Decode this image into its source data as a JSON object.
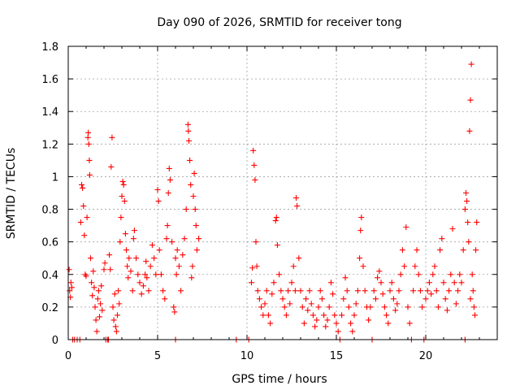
{
  "chart_data": {
    "type": "scatter",
    "title": "Day 090 of 2026, SRMTID for receiver tong",
    "xlabel": "GPS time / hours",
    "ylabel": "SRMTID / TECUs",
    "xlim": [
      0,
      24
    ],
    "ylim": [
      0,
      1.8
    ],
    "xticks": [
      0,
      5,
      10,
      15,
      20
    ],
    "xtick_labels": [
      "0",
      "5",
      "10",
      "15",
      "20"
    ],
    "yticks": [
      0,
      0.2,
      0.4,
      0.6,
      0.8,
      1,
      1.2,
      1.4,
      1.6,
      1.8
    ],
    "ytick_labels": [
      "0",
      "0.2",
      "0.4",
      "0.6",
      "0.8",
      "1",
      "1.2",
      "1.4",
      "1.6",
      "1.8"
    ],
    "grid": true,
    "marker": "+",
    "color": "#ff0000",
    "series": [
      {
        "name": "SRMTID",
        "points": [
          [
            0.05,
            0.43
          ],
          [
            0.08,
            0.3
          ],
          [
            0.12,
            0.26
          ],
          [
            0.15,
            0.35
          ],
          [
            0.2,
            0.32
          ],
          [
            0.25,
            0.0
          ],
          [
            0.35,
            0.0
          ],
          [
            0.5,
            0.0
          ],
          [
            0.65,
            0.0
          ],
          [
            0.7,
            0.72
          ],
          [
            0.75,
            0.95
          ],
          [
            0.8,
            0.93
          ],
          [
            0.85,
            0.82
          ],
          [
            0.9,
            0.64
          ],
          [
            0.95,
            0.4
          ],
          [
            1.0,
            0.39
          ],
          [
            1.05,
            0.75
          ],
          [
            1.1,
            1.24
          ],
          [
            1.12,
            1.27
          ],
          [
            1.15,
            1.2
          ],
          [
            1.18,
            1.1
          ],
          [
            1.2,
            1.01
          ],
          [
            1.25,
            0.5
          ],
          [
            1.3,
            0.35
          ],
          [
            1.35,
            0.27
          ],
          [
            1.4,
            0.42
          ],
          [
            1.45,
            0.32
          ],
          [
            1.5,
            0.2
          ],
          [
            1.55,
            0.12
          ],
          [
            1.6,
            0.05
          ],
          [
            1.65,
            0.25
          ],
          [
            1.7,
            0.3
          ],
          [
            1.75,
            0.14
          ],
          [
            1.8,
            0.22
          ],
          [
            1.85,
            0.33
          ],
          [
            1.9,
            0.18
          ],
          [
            2.0,
            0.43
          ],
          [
            2.05,
            0.47
          ],
          [
            2.1,
            0.0
          ],
          [
            2.2,
            0.0
          ],
          [
            2.25,
            0.0
          ],
          [
            2.3,
            0.52
          ],
          [
            2.35,
            0.43
          ],
          [
            2.4,
            1.06
          ],
          [
            2.45,
            1.24
          ],
          [
            2.5,
            0.2
          ],
          [
            2.55,
            0.12
          ],
          [
            2.6,
            0.28
          ],
          [
            2.65,
            0.08
          ],
          [
            2.7,
            0.05
          ],
          [
            2.75,
            0.15
          ],
          [
            2.8,
            0.3
          ],
          [
            2.85,
            0.22
          ],
          [
            2.9,
            0.6
          ],
          [
            2.95,
            0.75
          ],
          [
            3.0,
            0.88
          ],
          [
            3.05,
            0.97
          ],
          [
            3.1,
            0.95
          ],
          [
            3.15,
            0.85
          ],
          [
            3.2,
            0.65
          ],
          [
            3.25,
            0.55
          ],
          [
            3.3,
            0.45
          ],
          [
            3.35,
            0.38
          ],
          [
            3.4,
            0.5
          ],
          [
            3.5,
            0.42
          ],
          [
            3.6,
            0.3
          ],
          [
            3.65,
            0.62
          ],
          [
            3.7,
            0.67
          ],
          [
            3.8,
            0.5
          ],
          [
            3.9,
            0.4
          ],
          [
            4.0,
            0.35
          ],
          [
            4.1,
            0.28
          ],
          [
            4.2,
            0.33
          ],
          [
            4.3,
            0.4
          ],
          [
            4.35,
            0.48
          ],
          [
            4.4,
            0.38
          ],
          [
            4.5,
            0.3
          ],
          [
            4.6,
            0.45
          ],
          [
            4.7,
            0.58
          ],
          [
            4.8,
            0.5
          ],
          [
            4.9,
            0.4
          ],
          [
            5.0,
            0.92
          ],
          [
            5.05,
            0.85
          ],
          [
            5.1,
            0.55
          ],
          [
            5.2,
            0.4
          ],
          [
            5.3,
            0.3
          ],
          [
            5.4,
            0.25
          ],
          [
            5.5,
            0.62
          ],
          [
            5.55,
            0.7
          ],
          [
            5.6,
            0.9
          ],
          [
            5.65,
            1.05
          ],
          [
            5.7,
            0.98
          ],
          [
            5.8,
            0.6
          ],
          [
            5.9,
            0.2
          ],
          [
            5.95,
            0.17
          ],
          [
            6.0,
            0.5
          ],
          [
            6.05,
            0.4
          ],
          [
            6.1,
            0.55
          ],
          [
            6.2,
            0.45
          ],
          [
            6.3,
            0.3
          ],
          [
            6.4,
            0.52
          ],
          [
            6.5,
            0.62
          ],
          [
            6.6,
            0.8
          ],
          [
            6.7,
            1.32
          ],
          [
            6.72,
            1.28
          ],
          [
            6.75,
            1.22
          ],
          [
            6.8,
            1.1
          ],
          [
            6.85,
            0.95
          ],
          [
            6.9,
            0.38
          ],
          [
            6.95,
            0.45
          ],
          [
            7.0,
            0.88
          ],
          [
            7.05,
            1.02
          ],
          [
            7.1,
            0.8
          ],
          [
            7.15,
            0.7
          ],
          [
            7.2,
            0.55
          ],
          [
            6.0,
            0.0
          ],
          [
            7.3,
            0.62
          ],
          [
            9.4,
            0.0
          ],
          [
            10.1,
            0.0
          ],
          [
            10.25,
            0.35
          ],
          [
            10.3,
            0.44
          ],
          [
            10.35,
            1.16
          ],
          [
            10.4,
            1.07
          ],
          [
            10.45,
            0.98
          ],
          [
            10.5,
            0.6
          ],
          [
            10.55,
            0.45
          ],
          [
            10.6,
            0.3
          ],
          [
            10.7,
            0.25
          ],
          [
            10.8,
            0.2
          ],
          [
            10.9,
            0.15
          ],
          [
            11.0,
            0.22
          ],
          [
            11.1,
            0.3
          ],
          [
            11.2,
            0.15
          ],
          [
            11.3,
            0.1
          ],
          [
            11.4,
            0.28
          ],
          [
            11.5,
            0.35
          ],
          [
            11.6,
            0.73
          ],
          [
            11.65,
            0.75
          ],
          [
            11.7,
            0.58
          ],
          [
            11.8,
            0.4
          ],
          [
            11.9,
            0.3
          ],
          [
            12.0,
            0.25
          ],
          [
            12.1,
            0.2
          ],
          [
            12.2,
            0.15
          ],
          [
            12.3,
            0.3
          ],
          [
            12.4,
            0.22
          ],
          [
            12.5,
            0.35
          ],
          [
            12.6,
            0.45
          ],
          [
            12.7,
            0.3
          ],
          [
            12.75,
            0.87
          ],
          [
            12.8,
            0.82
          ],
          [
            12.9,
            0.5
          ],
          [
            13.0,
            0.3
          ],
          [
            13.1,
            0.2
          ],
          [
            13.2,
            0.1
          ],
          [
            13.3,
            0.25
          ],
          [
            13.4,
            0.18
          ],
          [
            13.5,
            0.3
          ],
          [
            13.6,
            0.22
          ],
          [
            13.7,
            0.15
          ],
          [
            13.8,
            0.08
          ],
          [
            13.9,
            0.12
          ],
          [
            14.0,
            0.2
          ],
          [
            14.1,
            0.3
          ],
          [
            14.2,
            0.25
          ],
          [
            14.3,
            0.15
          ],
          [
            14.4,
            0.08
          ],
          [
            14.5,
            0.12
          ],
          [
            14.6,
            0.2
          ],
          [
            14.7,
            0.35
          ],
          [
            14.8,
            0.28
          ],
          [
            14.9,
            0.15
          ],
          [
            15.0,
            0.1
          ],
          [
            15.1,
            0.05
          ],
          [
            15.2,
            0.0
          ],
          [
            15.3,
            0.15
          ],
          [
            15.4,
            0.25
          ],
          [
            15.5,
            0.38
          ],
          [
            15.6,
            0.3
          ],
          [
            15.7,
            0.2
          ],
          [
            15.8,
            0.1
          ],
          [
            15.9,
            0.05
          ],
          [
            16.0,
            0.15
          ],
          [
            16.1,
            0.22
          ],
          [
            16.2,
            0.3
          ],
          [
            16.3,
            0.5
          ],
          [
            16.35,
            0.67
          ],
          [
            16.4,
            0.75
          ],
          [
            16.5,
            0.45
          ],
          [
            16.6,
            0.3
          ],
          [
            16.7,
            0.2
          ],
          [
            16.8,
            0.12
          ],
          [
            16.9,
            0.2
          ],
          [
            17.0,
            0.0
          ],
          [
            17.1,
            0.3
          ],
          [
            17.2,
            0.25
          ],
          [
            17.3,
            0.38
          ],
          [
            17.4,
            0.42
          ],
          [
            17.5,
            0.35
          ],
          [
            17.6,
            0.28
          ],
          [
            17.7,
            0.2
          ],
          [
            17.8,
            0.15
          ],
          [
            17.9,
            0.1
          ],
          [
            18.0,
            0.3
          ],
          [
            18.1,
            0.35
          ],
          [
            18.2,
            0.25
          ],
          [
            18.3,
            0.18
          ],
          [
            18.4,
            0.22
          ],
          [
            18.5,
            0.3
          ],
          [
            18.6,
            0.4
          ],
          [
            18.7,
            0.55
          ],
          [
            18.8,
            0.45
          ],
          [
            18.9,
            0.69
          ],
          [
            19.0,
            0.2
          ],
          [
            19.1,
            0.1
          ],
          [
            19.2,
            0.0
          ],
          [
            19.3,
            0.3
          ],
          [
            19.4,
            0.45
          ],
          [
            19.5,
            0.55
          ],
          [
            19.6,
            0.4
          ],
          [
            19.7,
            0.3
          ],
          [
            19.8,
            0.2
          ],
          [
            19.9,
            0.0
          ],
          [
            20.0,
            0.25
          ],
          [
            20.1,
            0.3
          ],
          [
            20.2,
            0.35
          ],
          [
            20.3,
            0.28
          ],
          [
            20.4,
            0.4
          ],
          [
            20.5,
            0.45
          ],
          [
            20.6,
            0.3
          ],
          [
            20.7,
            0.2
          ],
          [
            20.8,
            0.55
          ],
          [
            20.9,
            0.62
          ],
          [
            21.0,
            0.35
          ],
          [
            21.1,
            0.25
          ],
          [
            21.2,
            0.18
          ],
          [
            21.3,
            0.3
          ],
          [
            21.4,
            0.4
          ],
          [
            21.5,
            0.68
          ],
          [
            21.6,
            0.35
          ],
          [
            21.7,
            0.22
          ],
          [
            21.8,
            0.3
          ],
          [
            21.9,
            0.4
          ],
          [
            22.0,
            0.35
          ],
          [
            22.1,
            0.55
          ],
          [
            22.2,
            0.8
          ],
          [
            22.25,
            0.9
          ],
          [
            22.3,
            0.85
          ],
          [
            22.35,
            0.72
          ],
          [
            22.4,
            0.6
          ],
          [
            22.45,
            1.28
          ],
          [
            22.5,
            1.47
          ],
          [
            22.55,
            1.69
          ],
          [
            22.6,
            0.4
          ],
          [
            22.65,
            0.3
          ],
          [
            22.7,
            0.2
          ],
          [
            22.75,
            0.15
          ],
          [
            22.8,
            0.55
          ],
          [
            22.85,
            0.72
          ],
          [
            22.5,
            0.25
          ],
          [
            22.2,
            0.0
          ]
        ]
      }
    ]
  }
}
